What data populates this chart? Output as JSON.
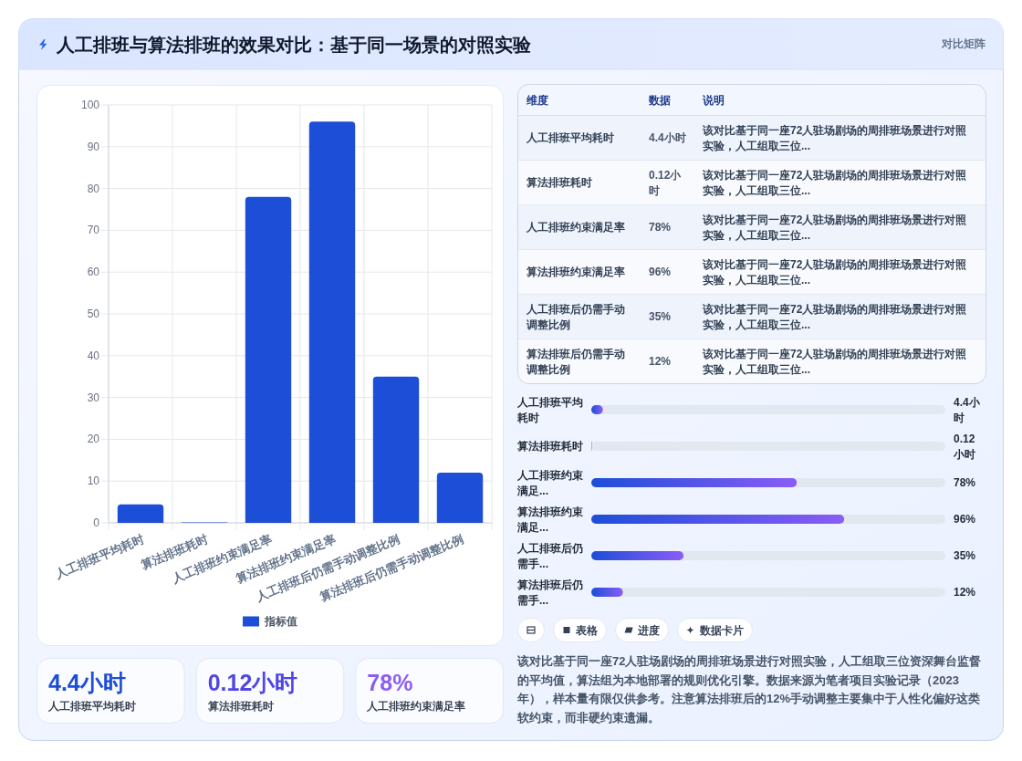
{
  "chart_data": [
    {
      "type": "other",
      "title": "人工排班与算法排班的效果对比：基于同一场景的对照实验",
      "subtitle": "对比矩阵"
    },
    {
      "type": "bar",
      "categories": [
        "人工排班平均耗时",
        "算法排班耗时",
        "人工排班约束满足率",
        "算法排班约束满足率",
        "人工排班后仍需手动调整比例",
        "算法排班后仍需手动调整比例"
      ],
      "series": [
        {
          "name": "指标值",
          "color": "#1d4ed8",
          "values": [
            4.4,
            0.12,
            78,
            96,
            35,
            12
          ]
        }
      ],
      "ylim": [
        0,
        100
      ],
      "yticks": [
        0,
        10,
        20,
        30,
        40,
        50,
        60,
        70,
        80,
        90,
        100
      ],
      "grid": true,
      "legend": "bottom"
    },
    {
      "type": "other",
      "categories": [
        "人工排班平均耗时",
        "算法排班耗时",
        "人工排班约束满足率",
        "算法排班约束满足率",
        "人工排班后仍需手动调整比例",
        "算法排班后仍需手动调整比例"
      ],
      "value_labels": [
        "4.4小时",
        "0.12小时",
        "78%",
        "96%",
        "35%",
        "12%"
      ],
      "annotations": [
        "维度",
        "数据",
        "说明",
        "该对比基于同一座72人驻场剧场的周排班场景进行对照实验，人工组取三位...",
        "该对比基于同一座72人驻场剧场的周排班场景进行对照实验，人工组取三位...",
        "该对比基于同一座72人驻场剧场的周排班场景进行对照实验，人工组取三位...",
        "该对比基于同一座72人驻场剧场的周排班场景进行对照实验，人工组取三位...",
        "该对比基于同一座72人驻场剧场的周排班场景进行对照实验，人工组取三位...",
        "该对比基于同一座72人驻场剧场的周排班场景进行对照实验，人工组取三位..."
      ]
    },
    {
      "type": "bar",
      "orientation": "horizontal",
      "categories": [
        "人工排班平均耗时",
        "算法排班耗时",
        "人工排班约束满足...",
        "算法排班约束满足...",
        "人工排班后仍需手...",
        "算法排班后仍需手..."
      ],
      "values": [
        4.4,
        0.12,
        78,
        96,
        35,
        12
      ],
      "value_labels": [
        "4.4小时",
        "0.12小时",
        "78%",
        "96%",
        "35%",
        "12%"
      ],
      "color": "#1d4ed8"
    },
    {
      "type": "other",
      "categories": [
        "人工排班平均耗时",
        "算法排班耗时",
        "人工排班约束满足率"
      ],
      "value_labels": [
        "4.4小时",
        "0.12小时",
        "78%"
      ]
    },
    {
      "type": "other",
      "categories": [
        null,
        "表格",
        "进度",
        "数据卡片"
      ],
      "annotations": [
        "该对比基于同一座72人驻场剧场的周排班场景进行对照实验，人工组取三位资深舞台监督的平均值，算法组为本地部署的规则优化引擎。数据来源为笔者项目实验记录（2023年），样本量有限仅供参考。注意算法排班后的12%手动调整主要集中于人性化偏好这类软约束，而非硬约束遗漏。"
      ]
    }
  ]
}
